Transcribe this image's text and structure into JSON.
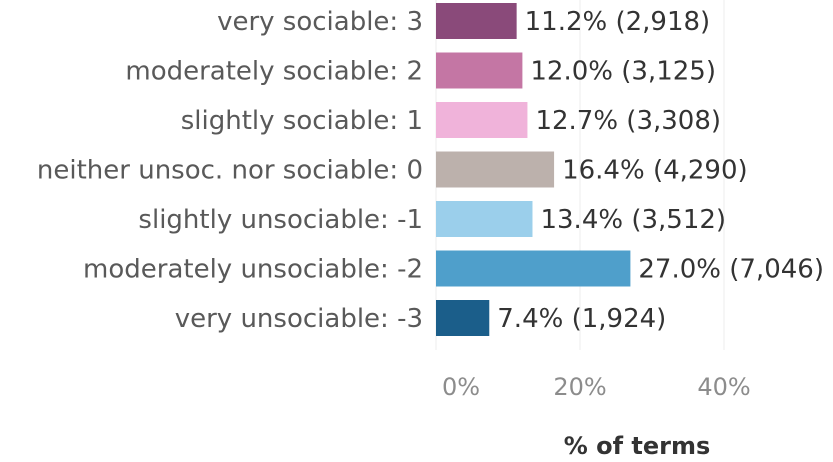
{
  "chart_data": {
    "type": "bar",
    "orientation": "horizontal",
    "categories": [
      "very sociable: 3",
      "moderately sociable: 2",
      "slightly sociable: 1",
      "neither unsoc. nor sociable: 0",
      "slightly unsociable: -1",
      "moderately unsociable: -2",
      "very unsociable: -3"
    ],
    "values": [
      11.2,
      12.0,
      12.7,
      16.4,
      13.4,
      27.0,
      7.4
    ],
    "data_labels": [
      "11.2% (2,918)",
      "12.0% (3,125)",
      "12.7% (3,308)",
      "16.4% (4,290)",
      "13.4% (3,512)",
      "27.0% (7,046)",
      "7.4% (1,924)"
    ],
    "colors": [
      "#8a4a7a",
      "#c476a4",
      "#f0b3da",
      "#bcb1ac",
      "#9bcfeb",
      "#4f9fcb",
      "#1b5e8a"
    ],
    "xlabel": "% of terms",
    "ylabel": "",
    "xticks": [
      "0%",
      "20%",
      "40%"
    ],
    "xtick_values": [
      0,
      20,
      40
    ],
    "xlim": [
      0,
      51.9
    ],
    "grid": true
  }
}
